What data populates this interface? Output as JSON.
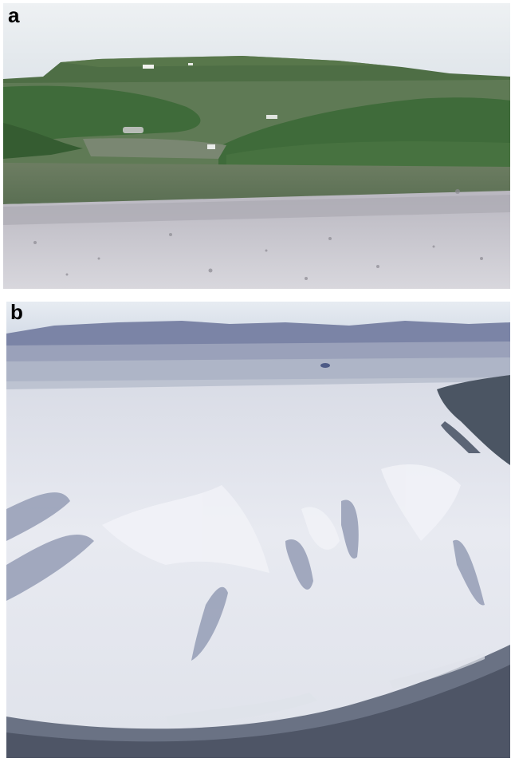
{
  "figure": {
    "panels": [
      {
        "label": "a",
        "subject": "tundra-plateau-landscape",
        "colors": {
          "sky": "#e7ecf0",
          "plateau": "#4e6e45",
          "vegetation": "#3f6b3a",
          "meadow": "#5f7a55",
          "gravel_plain": "#c9c8cf"
        }
      },
      {
        "label": "b",
        "subject": "aerial-snowfield-gullies",
        "colors": {
          "sky": "#dfe6ee",
          "ridge": "#7b84a6",
          "snow": "#e6e8f0",
          "gully_shadow": "#8a93ae",
          "rock": "#4b5563"
        }
      }
    ]
  }
}
